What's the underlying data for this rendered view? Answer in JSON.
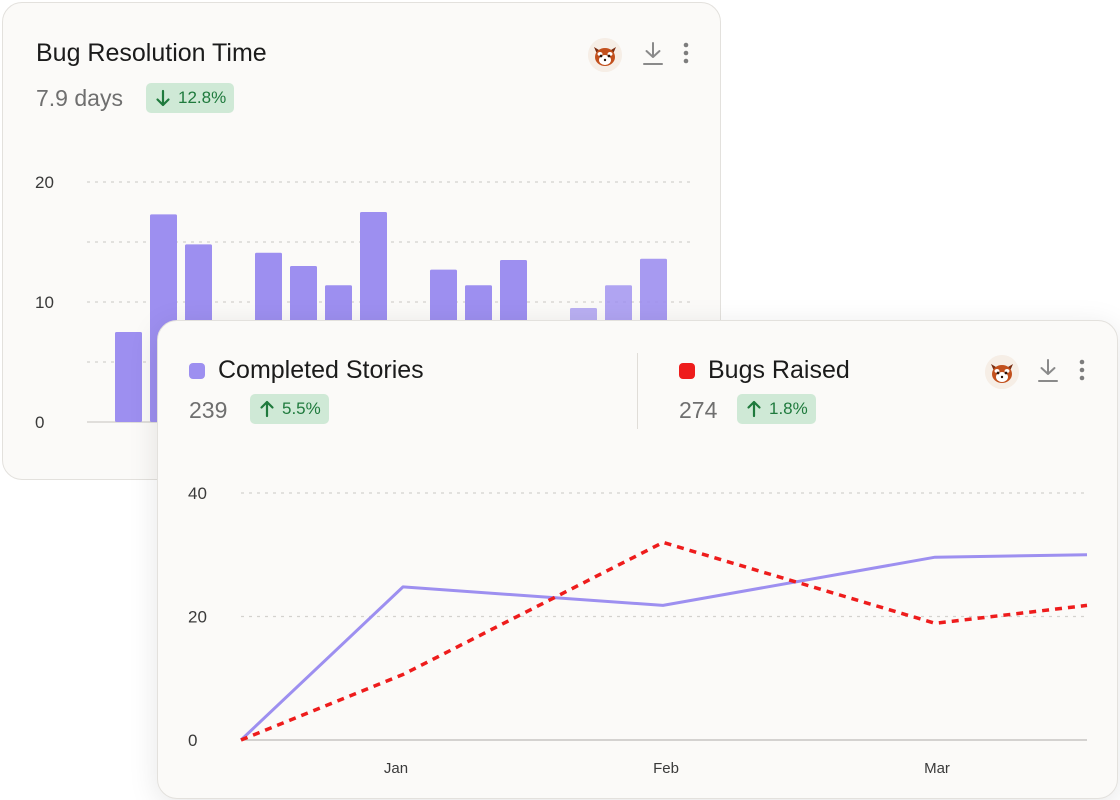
{
  "bug_card": {
    "title": "Bug Resolution Time",
    "value": "7.9 days",
    "change": "12.8%",
    "change_direction": "down",
    "actions": [
      "red-panda-avatar",
      "download-icon",
      "more-vertical-icon"
    ]
  },
  "stories_card": {
    "series_a": {
      "title": "Completed Stories",
      "value": "239",
      "change": "5.5%",
      "change_direction": "up",
      "color": "#9d8ff0"
    },
    "series_b": {
      "title": "Bugs Raised",
      "value": "274",
      "change": "1.8%",
      "change_direction": "up",
      "color": "#ee1c1c"
    },
    "actions": [
      "red-panda-avatar",
      "download-icon",
      "more-vertical-icon"
    ]
  },
  "colors": {
    "bar": "#9d8ff0",
    "badge_bg": "#cfe9d6",
    "badge_text": "#1f7a3d",
    "grid": "#d4d2ce"
  },
  "chart_data": [
    {
      "type": "bar",
      "title": "Bug Resolution Time",
      "ylim": [
        0,
        20
      ],
      "yticks": [
        "0",
        "10",
        "20"
      ],
      "grid": true,
      "groups": [
        [
          7.5,
          17.3,
          14.8
        ],
        [
          14.1,
          13.0,
          11.4,
          17.5
        ],
        [
          12.7,
          11.4,
          13.5
        ],
        [
          9.5,
          11.4,
          13.6
        ]
      ]
    },
    {
      "type": "line",
      "categories": [
        "Jan",
        "Feb",
        "Mar"
      ],
      "ylim": [
        0,
        40
      ],
      "yticks": [
        "0",
        "20",
        "40"
      ],
      "grid": true,
      "x": [
        0,
        1,
        2,
        3,
        4
      ],
      "series": [
        {
          "name": "Completed Stories",
          "style": "solid",
          "color": "#9d8ff0",
          "values": [
            0,
            24.8,
            21.8,
            29.6,
            30.0
          ]
        },
        {
          "name": "Bugs Raised",
          "style": "dashed",
          "color": "#ee1c1c",
          "values": [
            0,
            10.6,
            32.0,
            18.9,
            21.8
          ]
        }
      ]
    }
  ]
}
